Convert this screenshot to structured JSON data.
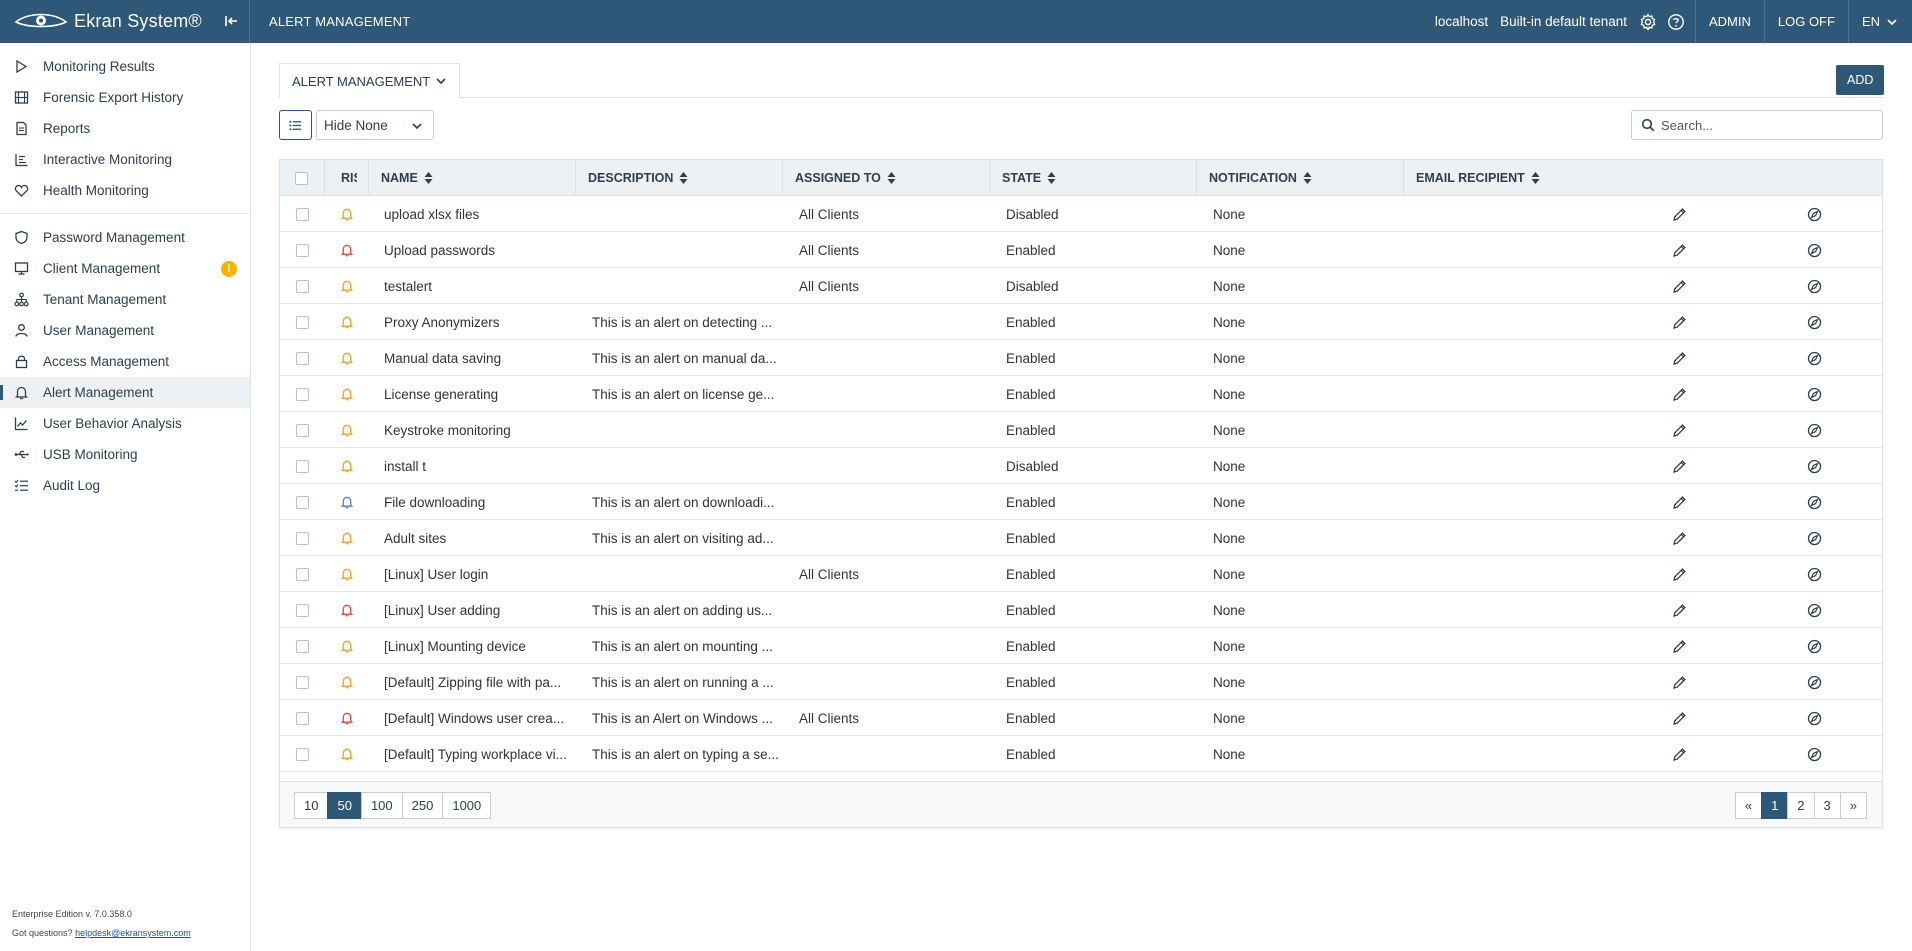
{
  "header": {
    "brand": "Ekran System®",
    "page_title": "ALERT MANAGEMENT",
    "host": "localhost",
    "tenant": "Built-in default tenant",
    "admin": "ADMIN",
    "logoff": "LOG OFF",
    "lang": "EN"
  },
  "sidebar": {
    "group1": [
      {
        "label": "Monitoring Results",
        "icon": "play-icon"
      },
      {
        "label": "Forensic Export History",
        "icon": "film-icon"
      },
      {
        "label": "Reports",
        "icon": "document-icon"
      },
      {
        "label": "Interactive Monitoring",
        "icon": "bar-chart-icon"
      },
      {
        "label": "Health Monitoring",
        "icon": "heart-icon"
      }
    ],
    "group2": [
      {
        "label": "Password Management",
        "icon": "shield-icon"
      },
      {
        "label": "Client Management",
        "icon": "monitor-icon",
        "badge": "!"
      },
      {
        "label": "Tenant Management",
        "icon": "hierarchy-icon"
      },
      {
        "label": "User Management",
        "icon": "user-icon"
      },
      {
        "label": "Access Management",
        "icon": "lock-icon"
      },
      {
        "label": "Alert Management",
        "icon": "bell-icon",
        "active": true
      },
      {
        "label": "User Behavior Analysis",
        "icon": "trend-icon"
      },
      {
        "label": "USB Monitoring",
        "icon": "usb-icon"
      },
      {
        "label": "Audit Log",
        "icon": "list-check-icon"
      }
    ],
    "footer_version": "Enterprise Edition v. 7.0.358.0",
    "footer_question": "Got questions?",
    "footer_email": "helpdesk@ekransystem.com"
  },
  "toolbar": {
    "tab_label": "ALERT MANAGEMENT",
    "add_label": "ADD",
    "hide_value": "Hide None",
    "search_placeholder": "Search..."
  },
  "table": {
    "columns": [
      "RISK",
      "NAME",
      "DESCRIPTION",
      "ASSIGNED TO",
      "STATE",
      "NOTIFICATION",
      "EMAIL RECIPIENT"
    ],
    "risk_colors": {
      "medium": "#f0a127",
      "high": "#e0454a",
      "low": "#4a86c5"
    },
    "rows": [
      {
        "risk": "medium",
        "name": "upload xlsx files",
        "desc": "",
        "assigned": "All Clients",
        "state": "Disabled",
        "notif": "None"
      },
      {
        "risk": "high",
        "name": "Upload passwords",
        "desc": "",
        "assigned": "All Clients",
        "state": "Enabled",
        "notif": "None"
      },
      {
        "risk": "medium",
        "name": "testalert",
        "desc": "",
        "assigned": "All Clients",
        "state": "Disabled",
        "notif": "None"
      },
      {
        "risk": "medium",
        "name": "Proxy Anonymizers",
        "desc": "This is an alert on detecting ...",
        "assigned": "",
        "state": "Enabled",
        "notif": "None"
      },
      {
        "risk": "medium",
        "name": "Manual data saving",
        "desc": "This is an alert on manual da...",
        "assigned": "",
        "state": "Enabled",
        "notif": "None"
      },
      {
        "risk": "medium",
        "name": "License generating",
        "desc": "This is an alert on license ge...",
        "assigned": "",
        "state": "Enabled",
        "notif": "None"
      },
      {
        "risk": "medium",
        "name": "Keystroke monitoring",
        "desc": "",
        "assigned": "",
        "state": "Enabled",
        "notif": "None"
      },
      {
        "risk": "medium",
        "name": "install t",
        "desc": "",
        "assigned": "",
        "state": "Disabled",
        "notif": "None"
      },
      {
        "risk": "low",
        "name": "File downloading",
        "desc": "This is an alert on downloadi...",
        "assigned": "",
        "state": "Enabled",
        "notif": "None"
      },
      {
        "risk": "medium",
        "name": "Adult sites",
        "desc": "This is an alert on visiting ad...",
        "assigned": "",
        "state": "Enabled",
        "notif": "None"
      },
      {
        "risk": "medium",
        "name": "[Linux] User login",
        "desc": "",
        "assigned": "All Clients",
        "state": "Enabled",
        "notif": "None"
      },
      {
        "risk": "high",
        "name": "[Linux] User adding",
        "desc": "This is an alert on adding us...",
        "assigned": "",
        "state": "Enabled",
        "notif": "None"
      },
      {
        "risk": "medium",
        "name": "[Linux] Mounting device",
        "desc": "This is an alert on mounting ...",
        "assigned": "",
        "state": "Enabled",
        "notif": "None"
      },
      {
        "risk": "medium",
        "name": "[Default] Zipping file with pa...",
        "desc": "This is an alert on running a ...",
        "assigned": "",
        "state": "Enabled",
        "notif": "None"
      },
      {
        "risk": "high",
        "name": "[Default] Windows user crea...",
        "desc": "This is an Alert on Windows ...",
        "assigned": "All Clients",
        "state": "Enabled",
        "notif": "None"
      },
      {
        "risk": "medium",
        "name": "[Default] Typing workplace vi...",
        "desc": "This is an alert on typing a se...",
        "assigned": "",
        "state": "Enabled",
        "notif": "None"
      }
    ]
  },
  "pagination": {
    "sizes": [
      "10",
      "50",
      "100",
      "250",
      "1000"
    ],
    "size_selected": "50",
    "prev": "«",
    "pages": [
      "1",
      "2",
      "3"
    ],
    "page_selected": "1",
    "next": "»"
  }
}
